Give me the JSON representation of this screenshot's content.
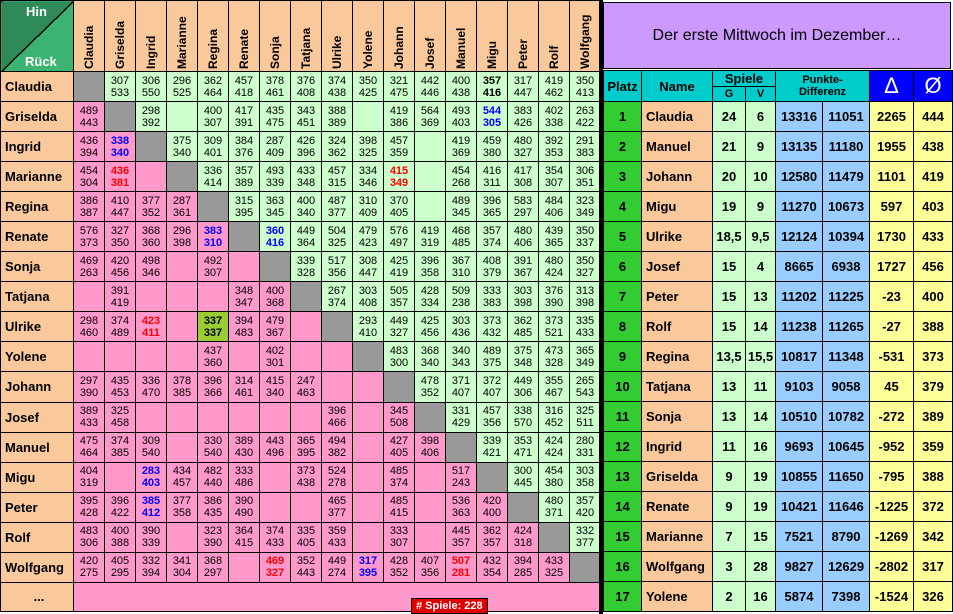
{
  "corner": {
    "hin": "Hin",
    "rueck": "Rück"
  },
  "players": [
    "Claudia",
    "Griselda",
    "Ingrid",
    "Marianne",
    "Regina",
    "Renate",
    "Sonja",
    "Tatjana",
    "Ulrike",
    "Yolene",
    "Johann",
    "Josef",
    "Manuel",
    "Migu",
    "Peter",
    "Rolf",
    "Wolfgang"
  ],
  "more_rows": "...",
  "games_count": "# Spiele:  228",
  "colors": {
    "upper": "#ccffcc",
    "lower": "#ff99cc",
    "diagonal": "#999999",
    "header": "#f9c89b",
    "highlight_blue": "#0000ff",
    "highlight_red": "#ff0000",
    "title_bg": "#cc99ff"
  },
  "matrix": [
    [
      "d",
      [
        "307",
        "533"
      ],
      [
        "306",
        "550"
      ],
      [
        "296",
        "525"
      ],
      [
        "362",
        "464"
      ],
      [
        "457",
        "418"
      ],
      [
        "378",
        "461"
      ],
      [
        "376",
        "408"
      ],
      [
        "374",
        "438"
      ],
      [
        "350",
        "425"
      ],
      [
        "321",
        "475"
      ],
      [
        "442",
        "446"
      ],
      [
        "400",
        "438"
      ],
      [
        "357",
        "416",
        "k"
      ],
      [
        "317",
        "447"
      ],
      [
        "419",
        "462"
      ],
      [
        "350",
        "413"
      ]
    ],
    [
      [
        "489",
        "443"
      ],
      "d",
      [
        "298",
        "392"
      ],
      "",
      [
        "400",
        "307"
      ],
      [
        "417",
        "391"
      ],
      [
        "435",
        "475"
      ],
      [
        "343",
        "451"
      ],
      [
        "388",
        "389"
      ],
      "",
      [
        "419",
        "386"
      ],
      [
        "564",
        "369"
      ],
      [
        "493",
        "403"
      ],
      [
        "544",
        "305",
        "b"
      ],
      [
        "383",
        "426"
      ],
      [
        "402",
        "338"
      ],
      [
        "263",
        "422"
      ]
    ],
    [
      [
        "436",
        "394"
      ],
      [
        "338",
        "340",
        "b"
      ],
      "d",
      [
        "375",
        "340"
      ],
      [
        "309",
        "401"
      ],
      [
        "384",
        "376"
      ],
      [
        "287",
        "409"
      ],
      [
        "426",
        "396"
      ],
      [
        "324",
        "362"
      ],
      [
        "398",
        "325"
      ],
      [
        "457",
        "359"
      ],
      "",
      [
        "419",
        "369"
      ],
      [
        "459",
        "380"
      ],
      [
        "480",
        "327"
      ],
      [
        "392",
        "353"
      ],
      [
        "291",
        "383"
      ]
    ],
    [
      [
        "454",
        "304"
      ],
      [
        "436",
        "381",
        "r"
      ],
      "",
      "d",
      [
        "336",
        "414"
      ],
      [
        "357",
        "389"
      ],
      [
        "493",
        "339"
      ],
      [
        "433",
        "348"
      ],
      [
        "457",
        "315"
      ],
      [
        "334",
        "346"
      ],
      [
        "415",
        "349",
        "r"
      ],
      "",
      [
        "454",
        "268"
      ],
      [
        "416",
        "311"
      ],
      [
        "417",
        "308"
      ],
      [
        "354",
        "307"
      ],
      [
        "306",
        "351"
      ]
    ],
    [
      [
        "386",
        "387"
      ],
      [
        "410",
        "447"
      ],
      [
        "377",
        "352"
      ],
      [
        "287",
        "361"
      ],
      "d",
      [
        "315",
        "395"
      ],
      [
        "363",
        "345"
      ],
      [
        "400",
        "340"
      ],
      [
        "487",
        "377"
      ],
      [
        "310",
        "409"
      ],
      [
        "370",
        "405"
      ],
      "",
      [
        "489",
        "345"
      ],
      [
        "396",
        "365"
      ],
      [
        "583",
        "297"
      ],
      [
        "484",
        "406"
      ],
      [
        "323",
        "349"
      ]
    ],
    [
      [
        "576",
        "373"
      ],
      [
        "327",
        "350"
      ],
      [
        "368",
        "360"
      ],
      [
        "296",
        "398"
      ],
      [
        "383",
        "310",
        "b"
      ],
      "d",
      [
        "360",
        "416",
        "b"
      ],
      [
        "449",
        "364"
      ],
      [
        "504",
        "325"
      ],
      [
        "479",
        "423"
      ],
      [
        "576",
        "497"
      ],
      [
        "419",
        "319"
      ],
      [
        "468",
        "485"
      ],
      [
        "357",
        "374"
      ],
      [
        "480",
        "406"
      ],
      [
        "439",
        "365"
      ],
      [
        "350",
        "337"
      ]
    ],
    [
      [
        "469",
        "263"
      ],
      [
        "420",
        "456"
      ],
      [
        "498",
        "346"
      ],
      "",
      [
        "492",
        "307"
      ],
      "",
      "d",
      [
        "339",
        "328"
      ],
      [
        "517",
        "356"
      ],
      [
        "308",
        "447"
      ],
      [
        "425",
        "419"
      ],
      [
        "396",
        "358"
      ],
      [
        "367",
        "310"
      ],
      [
        "408",
        "379"
      ],
      [
        "391",
        "367"
      ],
      [
        "480",
        "424"
      ],
      [
        "350",
        "327"
      ]
    ],
    [
      "",
      [
        "391",
        "419"
      ],
      "",
      "",
      "",
      [
        "348",
        "347"
      ],
      [
        "400",
        "368"
      ],
      "d",
      [
        "267",
        "374"
      ],
      [
        "303",
        "408"
      ],
      [
        "505",
        "357"
      ],
      [
        "428",
        "334"
      ],
      [
        "509",
        "238"
      ],
      [
        "333",
        "383"
      ],
      [
        "303",
        "398"
      ],
      [
        "376",
        "390"
      ],
      [
        "313",
        "398"
      ]
    ],
    [
      [
        "298",
        "460"
      ],
      [
        "374",
        "489"
      ],
      [
        "423",
        "411",
        "r"
      ],
      "",
      [
        "337",
        "337",
        "y"
      ],
      [
        "394",
        "483"
      ],
      [
        "479",
        "367"
      ],
      "",
      "d",
      [
        "293",
        "410"
      ],
      [
        "449",
        "327"
      ],
      [
        "425",
        "456"
      ],
      [
        "303",
        "436"
      ],
      [
        "373",
        "432"
      ],
      [
        "362",
        "485"
      ],
      [
        "373",
        "521"
      ],
      [
        "335",
        "433"
      ]
    ],
    [
      "",
      "",
      "",
      "",
      [
        "437",
        "360"
      ],
      "",
      [
        "402",
        "301"
      ],
      "",
      "",
      "d",
      [
        "483",
        "300"
      ],
      [
        "368",
        "340"
      ],
      [
        "340",
        "343"
      ],
      [
        "489",
        "375"
      ],
      [
        "375",
        "348"
      ],
      [
        "473",
        "328"
      ],
      [
        "365",
        "349"
      ]
    ],
    [
      [
        "297",
        "390"
      ],
      [
        "435",
        "453"
      ],
      [
        "336",
        "470"
      ],
      [
        "378",
        "385"
      ],
      [
        "396",
        "366"
      ],
      [
        "314",
        "461"
      ],
      [
        "415",
        "340"
      ],
      [
        "247",
        "463"
      ],
      "",
      "",
      "d",
      [
        "478",
        "352"
      ],
      [
        "371",
        "407"
      ],
      [
        "372",
        "407"
      ],
      [
        "449",
        "306"
      ],
      [
        "355",
        "467"
      ],
      [
        "265",
        "543"
      ]
    ],
    [
      [
        "389",
        "433"
      ],
      [
        "325",
        "458"
      ],
      "",
      "",
      "",
      "",
      "",
      "",
      [
        "396",
        "466"
      ],
      "",
      [
        "345",
        "508"
      ],
      "d",
      [
        "331",
        "429"
      ],
      [
        "457",
        "356"
      ],
      [
        "338",
        "570"
      ],
      [
        "316",
        "452"
      ],
      [
        "325",
        "511"
      ]
    ],
    [
      [
        "475",
        "464"
      ],
      [
        "374",
        "385"
      ],
      [
        "309",
        "540"
      ],
      "",
      [
        "330",
        "540"
      ],
      [
        "389",
        "430"
      ],
      [
        "443",
        "496"
      ],
      [
        "365",
        "395"
      ],
      [
        "494",
        "382"
      ],
      "",
      [
        "427",
        "405"
      ],
      [
        "398",
        "406"
      ],
      "d",
      [
        "339",
        "421"
      ],
      [
        "353",
        "471"
      ],
      [
        "424",
        "424"
      ],
      [
        "280",
        "331"
      ]
    ],
    [
      [
        "404",
        "319"
      ],
      "",
      [
        "283",
        "403",
        "b"
      ],
      [
        "434",
        "457"
      ],
      [
        "482",
        "440"
      ],
      [
        "333",
        "486"
      ],
      "",
      [
        "373",
        "438"
      ],
      [
        "524",
        "278"
      ],
      "",
      [
        "485",
        "374"
      ],
      "",
      [
        "517",
        "243"
      ],
      "d",
      [
        "300",
        "445"
      ],
      [
        "454",
        "380"
      ],
      [
        "303",
        "358"
      ]
    ],
    [
      [
        "395",
        "428"
      ],
      [
        "396",
        "422"
      ],
      [
        "385",
        "412",
        "b"
      ],
      [
        "377",
        "358"
      ],
      [
        "386",
        "435"
      ],
      [
        "390",
        "490"
      ],
      "",
      "",
      [
        "465",
        "377"
      ],
      "",
      [
        "485",
        "415"
      ],
      "",
      [
        "536",
        "363"
      ],
      [
        "420",
        "400"
      ],
      "d",
      [
        "480",
        "371"
      ],
      [
        "357",
        "420"
      ]
    ],
    [
      [
        "483",
        "306"
      ],
      [
        "400",
        "388"
      ],
      [
        "390",
        "339"
      ],
      "",
      [
        "323",
        "390"
      ],
      [
        "364",
        "415"
      ],
      [
        "374",
        "433"
      ],
      [
        "335",
        "405"
      ],
      [
        "359",
        "433"
      ],
      "",
      [
        "333",
        "307"
      ],
      "",
      [
        "445",
        "357"
      ],
      [
        "362",
        "357"
      ],
      [
        "424",
        "318"
      ],
      "d",
      [
        "332",
        "377"
      ]
    ],
    [
      [
        "420",
        "275"
      ],
      [
        "405",
        "295"
      ],
      [
        "332",
        "394"
      ],
      [
        "341",
        "304"
      ],
      [
        "368",
        "297"
      ],
      "",
      [
        "469",
        "327",
        "r"
      ],
      [
        "352",
        "443"
      ],
      [
        "449",
        "274"
      ],
      [
        "317",
        "395",
        "b"
      ],
      [
        "428",
        "352"
      ],
      [
        "407",
        "356"
      ],
      [
        "507",
        "281",
        "r"
      ],
      [
        "432",
        "354"
      ],
      [
        "394",
        "285"
      ],
      [
        "433",
        "325"
      ],
      "d"
    ]
  ],
  "ranking": {
    "title": "Der erste Mittwoch im Dezember…",
    "headers": {
      "platz": "Platz",
      "name": "Name",
      "spiele": "Spiele",
      "g": "G",
      "v": "V",
      "punkte_l1": "Punkte-",
      "punkte_l2": "Differenz",
      "delta": "Δ",
      "avg": "Ø"
    },
    "rows": [
      {
        "platz": "1",
        "name": "Claudia",
        "g": "24",
        "v": "6",
        "p1": "13316",
        "p2": "11051",
        "diff": "2265",
        "avg": "444"
      },
      {
        "platz": "2",
        "name": "Manuel",
        "g": "21",
        "v": "9",
        "p1": "13135",
        "p2": "11180",
        "diff": "1955",
        "avg": "438"
      },
      {
        "platz": "3",
        "name": "Johann",
        "g": "20",
        "v": "10",
        "p1": "12580",
        "p2": "11479",
        "diff": "1101",
        "avg": "419"
      },
      {
        "platz": "4",
        "name": "Migu",
        "g": "19",
        "v": "9",
        "p1": "11270",
        "p2": "10673",
        "diff": "597",
        "avg": "403"
      },
      {
        "platz": "5",
        "name": "Ulrike",
        "g": "18,5",
        "v": "9,5",
        "p1": "12124",
        "p2": "10394",
        "diff": "1730",
        "avg": "433"
      },
      {
        "platz": "6",
        "name": "Josef",
        "g": "15",
        "v": "4",
        "p1": "8665",
        "p2": "6938",
        "diff": "1727",
        "avg": "456"
      },
      {
        "platz": "7",
        "name": "Peter",
        "g": "15",
        "v": "13",
        "p1": "11202",
        "p2": "11225",
        "diff": "-23",
        "avg": "400"
      },
      {
        "platz": "8",
        "name": "Rolf",
        "g": "15",
        "v": "14",
        "p1": "11238",
        "p2": "11265",
        "diff": "-27",
        "avg": "388"
      },
      {
        "platz": "9",
        "name": "Regina",
        "g": "13,5",
        "v": "15,5",
        "p1": "10817",
        "p2": "11348",
        "diff": "-531",
        "avg": "373"
      },
      {
        "platz": "10",
        "name": "Tatjana",
        "g": "13",
        "v": "11",
        "p1": "9103",
        "p2": "9058",
        "diff": "45",
        "avg": "379"
      },
      {
        "platz": "11",
        "name": "Sonja",
        "g": "13",
        "v": "14",
        "p1": "10510",
        "p2": "10782",
        "diff": "-272",
        "avg": "389"
      },
      {
        "platz": "12",
        "name": "Ingrid",
        "g": "11",
        "v": "16",
        "p1": "9693",
        "p2": "10645",
        "diff": "-952",
        "avg": "359"
      },
      {
        "platz": "13",
        "name": "Griselda",
        "g": "9",
        "v": "19",
        "p1": "10855",
        "p2": "11650",
        "diff": "-795",
        "avg": "388"
      },
      {
        "platz": "14",
        "name": "Renate",
        "g": "9",
        "v": "19",
        "p1": "10421",
        "p2": "11646",
        "diff": "-1225",
        "avg": "372"
      },
      {
        "platz": "15",
        "name": "Marianne",
        "g": "7",
        "v": "15",
        "p1": "7521",
        "p2": "8790",
        "diff": "-1269",
        "avg": "342"
      },
      {
        "platz": "16",
        "name": "Wolfgang",
        "g": "3",
        "v": "28",
        "p1": "9827",
        "p2": "12629",
        "diff": "-2802",
        "avg": "317"
      },
      {
        "platz": "17",
        "name": "Yolene",
        "g": "2",
        "v": "16",
        "p1": "5874",
        "p2": "7398",
        "diff": "-1524",
        "avg": "326"
      }
    ]
  }
}
